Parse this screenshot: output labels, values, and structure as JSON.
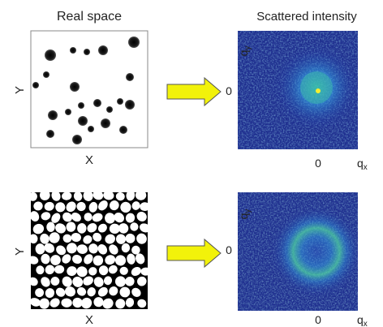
{
  "headers": {
    "real_space": "Real space",
    "scattered_intensity": "Scattered intensity"
  },
  "axis_labels": {
    "x": "X",
    "y": "Y",
    "qx_base": "q",
    "qx_sub": "x",
    "qy_base": "q",
    "qy_sub": "y",
    "zero": "0"
  },
  "colors": {
    "arrow_fill": "#f2f20a",
    "arrow_stroke": "#555555",
    "particle": "#111111",
    "panel_border": "#888888",
    "intensity_low": "#1f2f8f",
    "intensity_mid": "#2a6ed6",
    "intensity_high": "#4ec7a8",
    "intensity_peak": "#f4ee30"
  },
  "icons": {
    "arrow": "right-arrow-icon"
  }
}
